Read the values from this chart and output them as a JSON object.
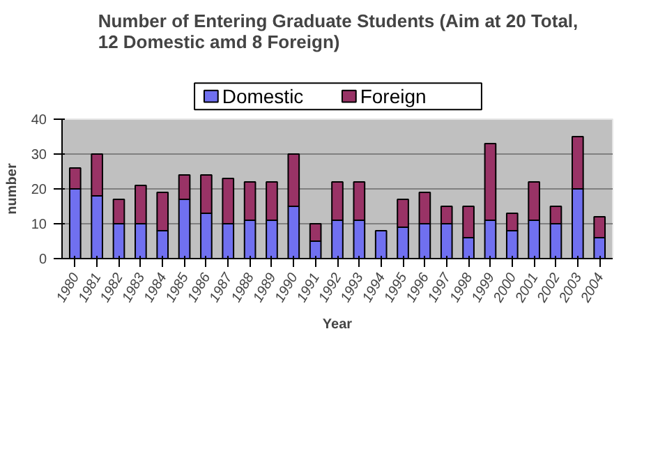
{
  "chart_data": {
    "type": "bar",
    "title": "Number of Entering Graduate Students (Aim at 20 Total, 12 Domestic amd 8 Foreign)",
    "xlabel": "Year",
    "ylabel": "number",
    "categories": [
      "1980",
      "1981",
      "1982",
      "1983",
      "1984",
      "1985",
      "1986",
      "1987",
      "1988",
      "1989",
      "1990",
      "1991",
      "1992",
      "1993",
      "1994",
      "1995",
      "1996",
      "1997",
      "1998",
      "1999",
      "2000",
      "2001",
      "2002",
      "2003",
      "2004"
    ],
    "stacked": true,
    "series": [
      {
        "name": "Domestic",
        "color": "#7070f0",
        "values": [
          20,
          18,
          10,
          10,
          8,
          17,
          13,
          10,
          11,
          11,
          15,
          5,
          11,
          11,
          8,
          9,
          10,
          10,
          6,
          11,
          8,
          11,
          10,
          20,
          6
        ]
      },
      {
        "name": "Foreign",
        "color": "#993366",
        "values": [
          6,
          12,
          7,
          11,
          11,
          7,
          11,
          13,
          11,
          11,
          15,
          5,
          11,
          11,
          0,
          8,
          9,
          5,
          9,
          22,
          5,
          11,
          5,
          15,
          6
        ]
      }
    ],
    "ylim": [
      0,
      40
    ],
    "yticks": [
      0,
      10,
      20,
      30,
      40
    ],
    "grid": "y",
    "legend": "top"
  }
}
